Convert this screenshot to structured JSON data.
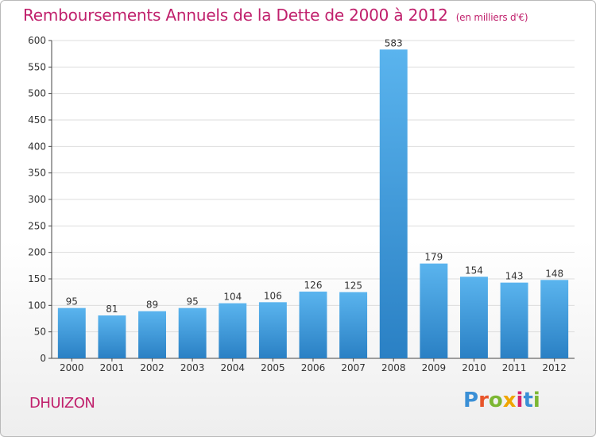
{
  "header": {
    "title": "Remboursements Annuels de la Dette de 2000 à 2012",
    "subtitle": "(en milliers d'€)"
  },
  "footer": {
    "commune": "DHUIZON",
    "logo": "Proxiti",
    "logo_colors": [
      "#3a8fd6",
      "#e8552a",
      "#7cb733",
      "#f0a500",
      "#d6246e",
      "#3a8fd6",
      "#7cb733"
    ]
  },
  "colors": {
    "bar_light": "#5ab4ee",
    "bar_dark": "#2a80c4",
    "accent": "#c0206c",
    "grid": "#dddddd"
  },
  "chart_data": {
    "type": "bar",
    "title": "Remboursements Annuels de la Dette de 2000 à 2012",
    "subtitle": "(en milliers d'€)",
    "categories": [
      "2000",
      "2001",
      "2002",
      "2003",
      "2004",
      "2005",
      "2006",
      "2007",
      "2008",
      "2009",
      "2010",
      "2011",
      "2012"
    ],
    "values": [
      95,
      81,
      89,
      95,
      104,
      106,
      126,
      125,
      583,
      179,
      154,
      143,
      148
    ],
    "ylim": [
      0,
      600
    ],
    "yticks": [
      0,
      50,
      100,
      150,
      200,
      250,
      300,
      350,
      400,
      450,
      500,
      550,
      600
    ],
    "grid": true,
    "data_labels": true
  }
}
